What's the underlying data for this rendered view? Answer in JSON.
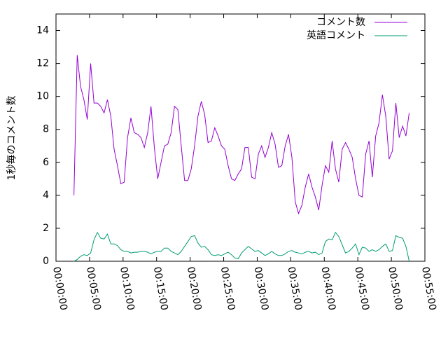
{
  "chart_data": {
    "type": "line",
    "ylabel": "1秒毎のコメント数",
    "x": [
      160,
      190,
      220,
      250,
      280,
      310,
      340,
      370,
      400,
      430,
      460,
      490,
      520,
      550,
      580,
      610,
      640,
      670,
      700,
      730,
      760,
      790,
      820,
      850,
      880,
      910,
      940,
      970,
      1000,
      1030,
      1060,
      1090,
      1120,
      1150,
      1180,
      1210,
      1240,
      1270,
      1300,
      1330,
      1360,
      1390,
      1420,
      1450,
      1480,
      1510,
      1540,
      1570,
      1600,
      1630,
      1660,
      1690,
      1720,
      1750,
      1780,
      1810,
      1840,
      1870,
      1900,
      1930,
      1960,
      1990,
      2020,
      2050,
      2080,
      2110,
      2140,
      2170,
      2200,
      2230,
      2260,
      2290,
      2320,
      2350,
      2380,
      2410,
      2440,
      2470,
      2500,
      2530,
      2560,
      2590,
      2620,
      2650,
      2680,
      2710,
      2740,
      2770,
      2800,
      2830,
      2860,
      2890,
      2920,
      2950,
      2980,
      3010,
      3040,
      3070,
      3100,
      3130,
      3160
    ],
    "series": [
      {
        "name": "コメント数",
        "color": "#9400d3",
        "values": [
          4.0,
          12.5,
          10.6,
          9.8,
          8.6,
          12.0,
          9.6,
          9.6,
          9.4,
          9.0,
          9.8,
          8.8,
          6.8,
          5.8,
          4.7,
          4.8,
          7.5,
          8.7,
          7.8,
          7.7,
          7.5,
          6.9,
          7.8,
          9.4,
          6.9,
          5.0,
          6.0,
          7.0,
          7.1,
          7.8,
          9.4,
          9.2,
          7.0,
          4.9,
          4.9,
          5.6,
          7.0,
          8.8,
          9.7,
          8.9,
          7.2,
          7.3,
          8.1,
          7.6,
          7.0,
          6.8,
          5.8,
          5.0,
          4.9,
          5.3,
          5.6,
          6.9,
          6.9,
          5.1,
          5.0,
          6.5,
          7.0,
          6.3,
          6.9,
          7.8,
          7.1,
          5.7,
          5.8,
          7.0,
          7.7,
          6.3,
          3.6,
          2.9,
          3.4,
          4.5,
          5.3,
          4.5,
          3.9,
          3.1,
          4.6,
          5.8,
          5.4,
          7.3,
          5.6,
          4.8,
          6.8,
          7.2,
          6.8,
          6.3,
          5.0,
          4.0,
          3.9,
          6.5,
          7.3,
          5.1,
          7.6,
          8.4,
          10.1,
          8.8,
          6.2,
          6.7,
          9.6,
          7.5,
          8.2,
          7.6,
          9.0
        ]
      },
      {
        "name": "英語コメント",
        "color": "#009e73",
        "values": [
          0,
          0.1,
          0.3,
          0.4,
          0.35,
          0.5,
          1.3,
          1.75,
          1.4,
          1.35,
          1.65,
          1.05,
          1.05,
          0.95,
          0.7,
          0.6,
          0.6,
          0.5,
          0.55,
          0.55,
          0.6,
          0.6,
          0.55,
          0.45,
          0.55,
          0.6,
          0.6,
          0.8,
          0.8,
          0.6,
          0.5,
          0.4,
          0.6,
          0.9,
          1.2,
          1.5,
          1.55,
          1.1,
          0.85,
          0.9,
          0.7,
          0.4,
          0.35,
          0.4,
          0.35,
          0.45,
          0.55,
          0.4,
          0.2,
          0.15,
          0.5,
          0.7,
          0.9,
          0.75,
          0.6,
          0.65,
          0.5,
          0.35,
          0.45,
          0.6,
          0.45,
          0.35,
          0.35,
          0.45,
          0.6,
          0.65,
          0.55,
          0.5,
          0.45,
          0.55,
          0.6,
          0.5,
          0.55,
          0.4,
          0.5,
          1.2,
          1.35,
          1.3,
          1.75,
          1.5,
          1.0,
          0.5,
          0.6,
          0.8,
          1.05,
          0.4,
          0.85,
          0.8,
          0.6,
          0.7,
          0.6,
          0.7,
          0.9,
          1.05,
          0.6,
          0.65,
          1.55,
          1.45,
          1.4,
          0.9,
          0
        ]
      }
    ],
    "xlim": [
      0,
      3300
    ],
    "xticks": [
      {
        "value": 0,
        "label": "00:00:00"
      },
      {
        "value": 300,
        "label": "00:05:00"
      },
      {
        "value": 600,
        "label": "00:10:00"
      },
      {
        "value": 900,
        "label": "00:15:00"
      },
      {
        "value": 1200,
        "label": "00:20:00"
      },
      {
        "value": 1500,
        "label": "00:25:00"
      },
      {
        "value": 1800,
        "label": "00:30:00"
      },
      {
        "value": 2100,
        "label": "00:35:00"
      },
      {
        "value": 2400,
        "label": "00:40:00"
      },
      {
        "value": 2700,
        "label": "00:45:00"
      },
      {
        "value": 3000,
        "label": "00:50:00"
      },
      {
        "value": 3300,
        "label": "00:55:00"
      }
    ],
    "ylim": [
      0,
      15
    ],
    "yticks": [
      0,
      2,
      4,
      6,
      8,
      10,
      12,
      14
    ],
    "legend": "top-right"
  }
}
